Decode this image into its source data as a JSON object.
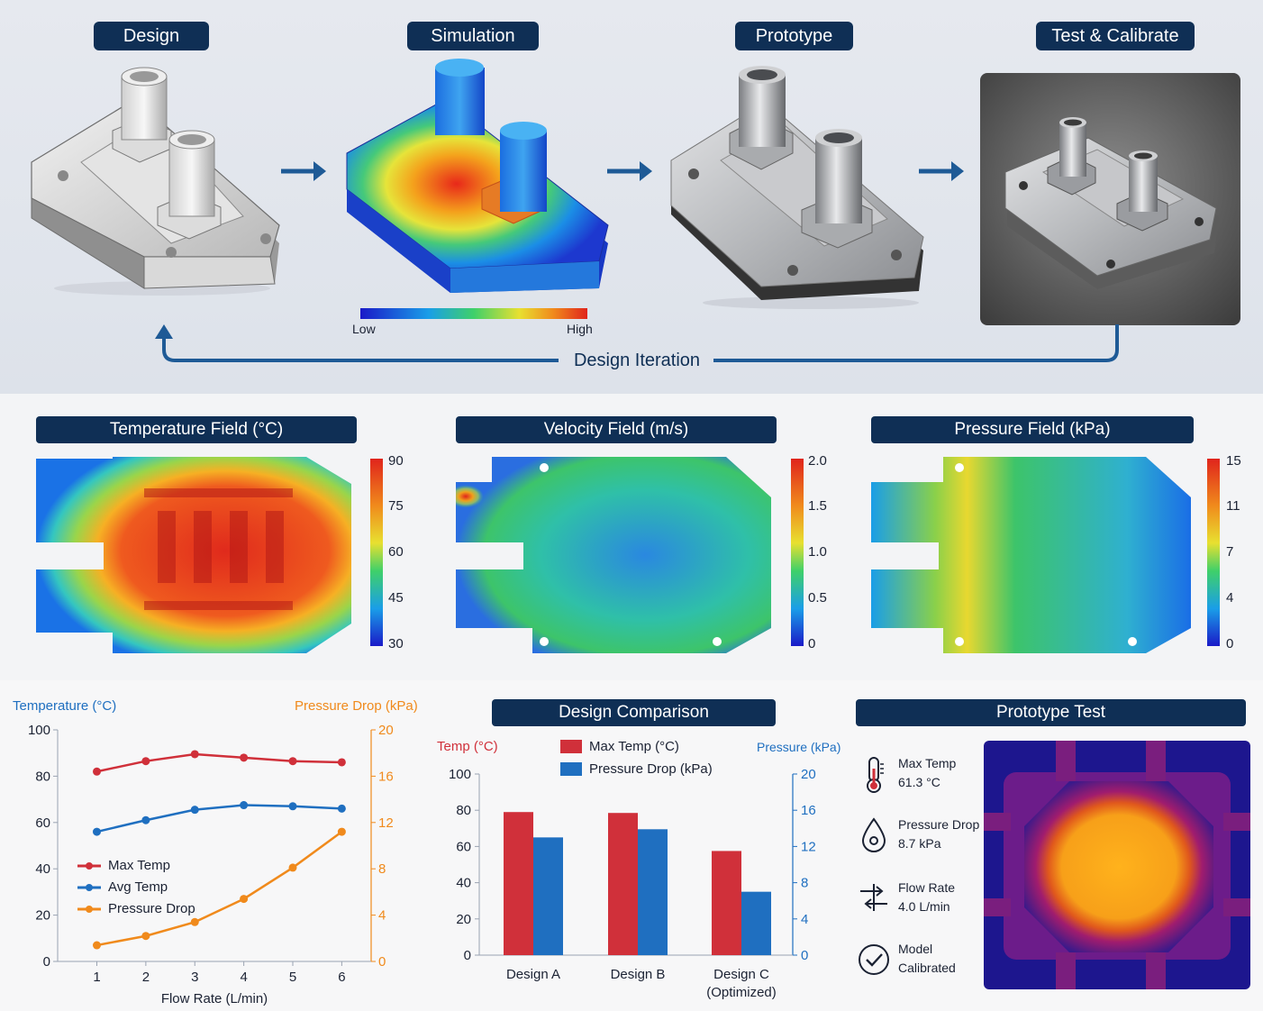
{
  "workflow": {
    "steps": [
      {
        "label": "Design"
      },
      {
        "label": "Simulation"
      },
      {
        "label": "Prototype"
      },
      {
        "label": "Test & Calibrate"
      }
    ],
    "scale_low": "Low",
    "scale_high": "High",
    "loop_label": "Design Iteration"
  },
  "fields": [
    {
      "title": "Temperature Field (°C)",
      "ticks": [
        "90",
        "75",
        "60",
        "45",
        "30"
      ]
    },
    {
      "title": "Velocity Field (m/s)",
      "ticks": [
        "2.0",
        "1.5",
        "1.0",
        "0.5",
        "0"
      ]
    },
    {
      "title": "Pressure Field (kPa)",
      "ticks": [
        "15",
        "11",
        "7",
        "4",
        "0"
      ]
    }
  ],
  "chart_data": [
    {
      "type": "line",
      "title": "",
      "xlabel": "Flow Rate (L/min)",
      "ylabel": "Temperature (°C)",
      "y2label": "Pressure Drop (kPa)",
      "x": [
        1,
        2,
        3,
        4,
        5,
        6
      ],
      "xticks": [
        "1",
        "2",
        "3",
        "4",
        "5",
        "6"
      ],
      "yticks": [
        "100",
        "80",
        "60",
        "40",
        "20",
        "0"
      ],
      "y2ticks": [
        "20",
        "16",
        "12",
        "8",
        "4",
        "0"
      ],
      "ylim": [
        0,
        100
      ],
      "y2lim": [
        0,
        20
      ],
      "series": [
        {
          "name": "Max Temp",
          "axis": "left",
          "color": "#d0303a",
          "values": [
            82,
            86.5,
            89.5,
            88,
            86.5,
            86
          ]
        },
        {
          "name": "Avg Temp",
          "axis": "left",
          "color": "#1f6fc0",
          "values": [
            56,
            61,
            65.5,
            67.5,
            67,
            66
          ]
        },
        {
          "name": "Pressure Drop",
          "axis": "right",
          "color": "#f08a1c",
          "values": [
            1.4,
            2.2,
            3.4,
            5.4,
            8.1,
            11.2
          ]
        }
      ],
      "legend": "lower-left"
    },
    {
      "type": "bar",
      "title": "Design Comparison",
      "ylabel": "Temp (°C)",
      "y2label": "Pressure (kPa)",
      "categories": [
        "Design A",
        "Design B",
        "Design C\n(Optimized)"
      ],
      "category_lines": [
        [
          "Design A"
        ],
        [
          "Design B"
        ],
        [
          "Design C",
          "(Optimized)"
        ]
      ],
      "yticks": [
        "100",
        "80",
        "60",
        "40",
        "20",
        "0"
      ],
      "y2ticks": [
        "20",
        "16",
        "12",
        "8",
        "4",
        "0"
      ],
      "ylim": [
        0,
        100
      ],
      "y2lim": [
        0,
        20
      ],
      "series": [
        {
          "name": "Max Temp (°C)",
          "axis": "left",
          "color": "#d0303a",
          "values": [
            79,
            78.5,
            57.5
          ]
        },
        {
          "name": "Pressure Drop (kPa)",
          "axis": "right",
          "color": "#1f6fc0",
          "values": [
            13,
            13.9,
            7
          ]
        }
      ],
      "legend": "top"
    }
  ],
  "prototype_test": {
    "title": "Prototype Test",
    "items": [
      {
        "icon": "thermometer-icon",
        "label": "Max Temp",
        "value": "61.3 °C"
      },
      {
        "icon": "droplet-icon",
        "label": "Pressure Drop",
        "value": "8.7 kPa"
      },
      {
        "icon": "flow-icon",
        "label": "Flow Rate",
        "value": "4.0 L/min"
      },
      {
        "icon": "check-circle-icon",
        "label": "Model",
        "value": "Calibrated"
      }
    ]
  }
}
